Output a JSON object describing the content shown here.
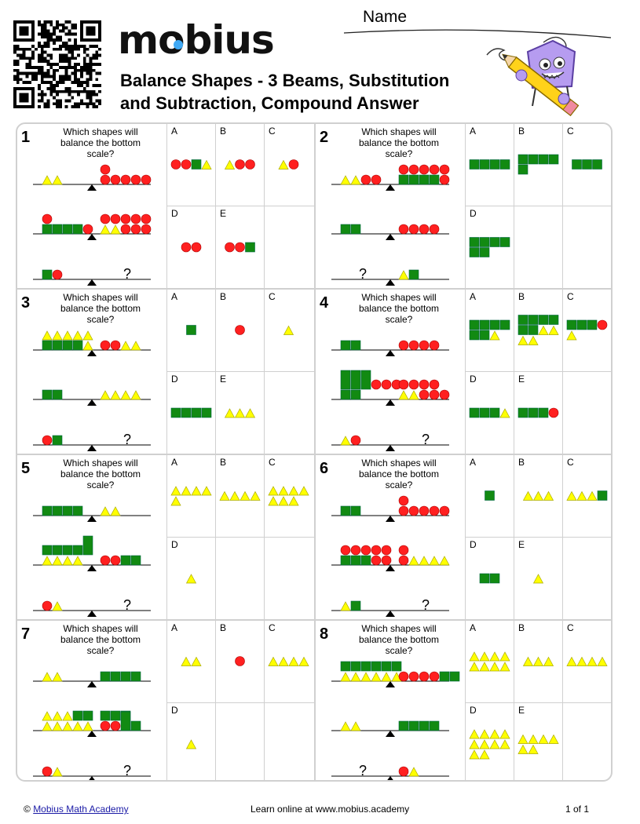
{
  "header": {
    "logo": "mobius",
    "title_line1": "Balance Shapes - 3 Beams, Substitution",
    "title_line2": "and Subtraction, Compound Answer",
    "name_label": "Name"
  },
  "question_text": "Which shapes will balance the bottom scale?",
  "unknown_mark": "?",
  "colors": {
    "circle": "#ff2020",
    "square": "#128a12",
    "triangle": "#ffff00",
    "border": "#d0d0d0",
    "logo_accent": "#3fa9f5"
  },
  "problems": [
    {
      "number": "1",
      "beams": [
        {
          "left": [
            [
              "t",
              "t"
            ]
          ],
          "right": [
            [
              "c"
            ],
            [
              "c",
              "c",
              "c",
              "c",
              "c"
            ]
          ]
        },
        {
          "left": [
            [
              "c"
            ],
            [
              "s",
              "s",
              "s",
              "s",
              "c"
            ]
          ],
          "right": [
            [
              "c",
              "c",
              "c",
              "c",
              "c"
            ],
            [
              "t",
              "t",
              "c",
              "c",
              "c"
            ]
          ]
        },
        {
          "left": [
            [
              "s",
              "c"
            ]
          ],
          "right": "?"
        }
      ],
      "answers": [
        {
          "label": "A",
          "rows": [
            [
              "c",
              "c",
              "s",
              "t"
            ]
          ]
        },
        {
          "label": "B",
          "rows": [
            [
              "t",
              "c",
              "c"
            ]
          ]
        },
        {
          "label": "C",
          "rows": [
            [
              "t",
              "c"
            ]
          ]
        },
        {
          "label": "D",
          "rows": [
            [
              "c",
              "c"
            ]
          ]
        },
        {
          "label": "E",
          "rows": [
            [
              "c",
              "c",
              "s"
            ]
          ]
        }
      ]
    },
    {
      "number": "2",
      "beams": [
        {
          "left": [
            [
              "t",
              "t",
              "c",
              "c"
            ]
          ],
          "right": [
            [
              "c",
              "c",
              "c",
              "c",
              "c"
            ],
            [
              "s",
              "s",
              "s",
              "s",
              "c"
            ]
          ]
        },
        {
          "left": [
            [
              "s",
              "s"
            ]
          ],
          "right": [
            [
              "c",
              "c",
              "c",
              "c"
            ]
          ]
        },
        {
          "left": "?",
          "right": [
            [
              "t",
              "s"
            ]
          ]
        }
      ],
      "answers": [
        {
          "label": "A",
          "rows": [
            [
              "s",
              "s",
              "s",
              "s"
            ]
          ]
        },
        {
          "label": "B",
          "rows": [
            [
              "s",
              "s",
              "s",
              "s"
            ],
            [
              "s"
            ]
          ]
        },
        {
          "label": "C",
          "rows": [
            [
              "s",
              "s",
              "s"
            ]
          ]
        },
        {
          "label": "D",
          "rows": [
            [
              "s",
              "s",
              "s",
              "s"
            ],
            [
              "s",
              "s"
            ]
          ]
        }
      ]
    },
    {
      "number": "3",
      "beams": [
        {
          "left": [
            [
              "t",
              "t",
              "t",
              "t",
              "t"
            ],
            [
              "s",
              "s",
              "s",
              "s",
              "t"
            ]
          ],
          "right": [
            [
              "c",
              "c",
              "t",
              "t"
            ]
          ]
        },
        {
          "left": [
            [
              "s",
              "s"
            ]
          ],
          "right": [
            [
              "t",
              "t",
              "t",
              "t"
            ]
          ]
        },
        {
          "left": [
            [
              "c",
              "s"
            ]
          ],
          "right": "?"
        }
      ],
      "answers": [
        {
          "label": "A",
          "rows": [
            [
              "s"
            ]
          ]
        },
        {
          "label": "B",
          "rows": [
            [
              "c"
            ]
          ]
        },
        {
          "label": "C",
          "rows": [
            [
              "t"
            ]
          ]
        },
        {
          "label": "D",
          "rows": [
            [
              "s",
              "s",
              "s",
              "s"
            ]
          ]
        },
        {
          "label": "E",
          "rows": [
            [
              "t",
              "t",
              "t"
            ]
          ]
        }
      ]
    },
    {
      "number": "4",
      "beams": [
        {
          "left": [
            [
              "s",
              "s"
            ]
          ],
          "right": [
            [
              "c",
              "c",
              "c",
              "c"
            ]
          ]
        },
        {
          "left": [
            [
              "S",
              "S",
              "S",
              "c",
              "c",
              "c"
            ],
            [
              "s",
              "s"
            ]
          ],
          "right": [
            [
              "c",
              "c",
              "c",
              "c"
            ],
            [
              "t",
              "t",
              "c",
              "c",
              "c"
            ]
          ]
        },
        {
          "left": [
            [
              "t",
              "c"
            ]
          ],
          "right": "?"
        }
      ],
      "answers": [
        {
          "label": "A",
          "rows": [
            [
              "s",
              "s",
              "s",
              "s"
            ],
            [
              "s",
              "s",
              "t"
            ]
          ]
        },
        {
          "label": "B",
          "rows": [
            [
              "s",
              "s",
              "s",
              "s"
            ],
            [
              "s",
              "s",
              "t",
              "t"
            ],
            [
              "t",
              "t"
            ]
          ]
        },
        {
          "label": "C",
          "rows": [
            [
              "s",
              "s",
              "s",
              "c"
            ],
            [
              "t"
            ]
          ]
        },
        {
          "label": "D",
          "rows": [
            [
              "s",
              "s",
              "s",
              "t"
            ]
          ]
        },
        {
          "label": "E",
          "rows": [
            [
              "s",
              "s",
              "s",
              "c"
            ]
          ]
        }
      ]
    },
    {
      "number": "5",
      "beams": [
        {
          "left": [
            [
              "s",
              "s",
              "s",
              "s"
            ]
          ],
          "right": [
            [
              "t",
              "t"
            ]
          ]
        },
        {
          "left": [
            [
              "s",
              "s",
              "s",
              "s",
              "S"
            ],
            [
              "t",
              "t",
              "t",
              "t"
            ]
          ],
          "right": [
            [
              "c",
              "c",
              "s",
              "s"
            ]
          ]
        },
        {
          "left": [
            [
              "c",
              "t"
            ]
          ],
          "right": "?"
        }
      ],
      "answers": [
        {
          "label": "A",
          "rows": [
            [
              "t",
              "t",
              "t",
              "t"
            ],
            [
              "t"
            ]
          ]
        },
        {
          "label": "B",
          "rows": [
            [
              "t",
              "t",
              "t",
              "t"
            ]
          ]
        },
        {
          "label": "C",
          "rows": [
            [
              "t",
              "t",
              "t",
              "t"
            ],
            [
              "t",
              "t",
              "t"
            ]
          ]
        },
        {
          "label": "D",
          "rows": [
            [
              "t"
            ]
          ]
        }
      ]
    },
    {
      "number": "6",
      "beams": [
        {
          "left": [
            [
              "s",
              "s"
            ]
          ],
          "right": [
            [
              "c"
            ],
            [
              "c",
              "c",
              "c",
              "c",
              "c"
            ]
          ]
        },
        {
          "left": [
            [
              "c",
              "c",
              "c",
              "c",
              "c"
            ],
            [
              "s",
              "s",
              "s",
              "c",
              "c"
            ]
          ],
          "right": [
            [
              "c"
            ],
            [
              "c",
              "t",
              "t",
              "t",
              "t"
            ]
          ]
        },
        {
          "left": [
            [
              "t",
              "s"
            ]
          ],
          "right": "?"
        }
      ],
      "answers": [
        {
          "label": "A",
          "rows": [
            [
              "s"
            ]
          ]
        },
        {
          "label": "B",
          "rows": [
            [
              "t",
              "t",
              "t"
            ]
          ]
        },
        {
          "label": "C",
          "rows": [
            [
              "t",
              "t",
              "t",
              "s"
            ]
          ]
        },
        {
          "label": "D",
          "rows": [
            [
              "s",
              "s"
            ]
          ]
        },
        {
          "label": "E",
          "rows": [
            [
              "t"
            ]
          ]
        }
      ]
    },
    {
      "number": "7",
      "beams": [
        {
          "left": [
            [
              "t",
              "t"
            ]
          ],
          "right": [
            [
              "s",
              "s",
              "s",
              "s"
            ]
          ]
        },
        {
          "left": [
            [
              "t",
              "t",
              "t",
              "s",
              "s"
            ],
            [
              "t",
              "t",
              "t",
              "t",
              "t"
            ]
          ],
          "right": [
            [
              "s",
              "s",
              "s"
            ],
            [
              "c",
              "c",
              "S",
              "s"
            ]
          ]
        },
        {
          "left": [
            [
              "c",
              "t"
            ]
          ],
          "right": "?"
        }
      ],
      "answers": [
        {
          "label": "A",
          "rows": [
            [
              "t",
              "t"
            ]
          ]
        },
        {
          "label": "B",
          "rows": [
            [
              "c"
            ]
          ]
        },
        {
          "label": "C",
          "rows": [
            [
              "t",
              "t",
              "t",
              "t"
            ]
          ]
        },
        {
          "label": "D",
          "rows": [
            [
              "t"
            ]
          ]
        }
      ]
    },
    {
      "number": "8",
      "beams": [
        {
          "left": [
            [
              "s",
              "s",
              "s",
              "s",
              "s",
              "s"
            ],
            [
              "t",
              "t",
              "t",
              "t",
              "t",
              "t"
            ]
          ],
          "right": [
            [
              "c",
              "c",
              "c",
              "c",
              "s",
              "s"
            ]
          ]
        },
        {
          "left": [
            [
              "t",
              "t"
            ]
          ],
          "right": [
            [
              "s",
              "s",
              "s",
              "s"
            ]
          ]
        },
        {
          "left": "?",
          "right": [
            [
              "c",
              "t"
            ]
          ]
        }
      ],
      "answers": [
        {
          "label": "A",
          "rows": [
            [
              "t",
              "t",
              "t",
              "t"
            ],
            [
              "t",
              "t",
              "t",
              "t"
            ]
          ]
        },
        {
          "label": "B",
          "rows": [
            [
              "t",
              "t",
              "t"
            ]
          ]
        },
        {
          "label": "C",
          "rows": [
            [
              "t",
              "t",
              "t",
              "t"
            ]
          ]
        },
        {
          "label": "D",
          "rows": [
            [
              "t",
              "t",
              "t",
              "t"
            ],
            [
              "t",
              "t",
              "t",
              "t"
            ],
            [
              "t",
              "t"
            ]
          ]
        },
        {
          "label": "E",
          "rows": [
            [
              "t",
              "t",
              "t",
              "t"
            ],
            [
              "t",
              "t"
            ]
          ]
        }
      ]
    }
  ],
  "footer": {
    "copyright_symbol": "©",
    "link_text": "Mobius Math Academy",
    "learn_text": "Learn online at www.mobius.academy",
    "page": "1 of 1"
  }
}
